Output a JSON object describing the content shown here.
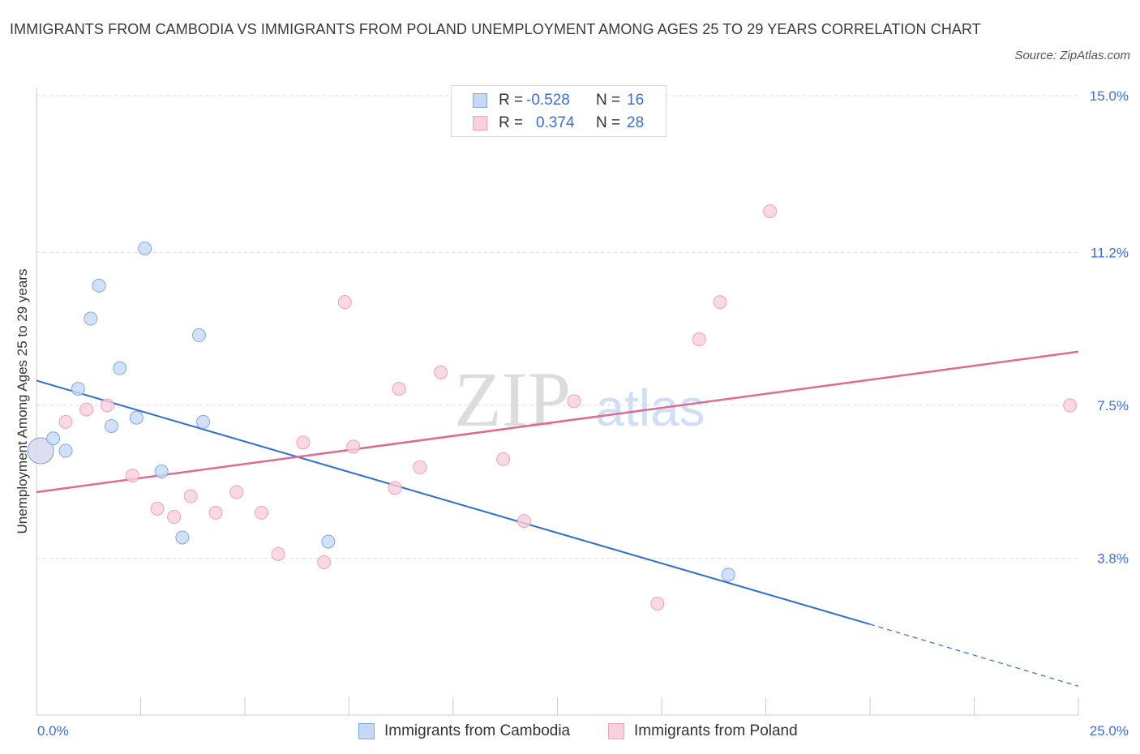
{
  "title": "IMMIGRANTS FROM CAMBODIA VS IMMIGRANTS FROM POLAND UNEMPLOYMENT AMONG AGES 25 TO 29 YEARS CORRELATION CHART",
  "source": "Source: ZipAtlas.com",
  "watermark": {
    "zip": "ZIP",
    "atlas": "atlas"
  },
  "legend": {
    "cambodia": {
      "r_label": "R =",
      "r_value": "-0.528",
      "n_label": "N =",
      "n_value": "16"
    },
    "poland": {
      "r_label": "R =",
      "r_value": "0.374",
      "n_label": "N =",
      "n_value": "28"
    }
  },
  "colors": {
    "cambodia_fill": "#c5d9f5",
    "cambodia_stroke": "#7fa8e3",
    "cambodia_line": "#2f6fd0",
    "poland_fill": "#f9d0dc",
    "poland_stroke": "#eda2b8",
    "poland_line": "#e06a94",
    "axis_value": "#3a6fd4",
    "grid": "#dedede"
  },
  "chart_data": {
    "type": "scatter",
    "title": "IMMIGRANTS FROM CAMBODIA VS IMMIGRANTS FROM POLAND UNEMPLOYMENT AMONG AGES 25 TO 29 YEARS CORRELATION CHART",
    "xlabel": "",
    "ylabel": "Unemployment Among Ages 25 to 29 years",
    "xlim": [
      0,
      25
    ],
    "ylim": [
      0,
      15
    ],
    "x_tick_labels": [
      "0.0%",
      "25.0%"
    ],
    "y_ticks": [
      3.8,
      7.5,
      11.2,
      15.0
    ],
    "y_tick_labels": [
      "3.8%",
      "7.5%",
      "11.2%",
      "15.0%"
    ],
    "grid": true,
    "series": [
      {
        "name": "Immigrants from Cambodia",
        "color": "#7fa8e3",
        "points": [
          {
            "x": 0.1,
            "y": 6.4,
            "big": true
          },
          {
            "x": 0.4,
            "y": 6.7
          },
          {
            "x": 0.7,
            "y": 6.4
          },
          {
            "x": 1.0,
            "y": 7.9
          },
          {
            "x": 1.3,
            "y": 9.6
          },
          {
            "x": 1.5,
            "y": 10.4
          },
          {
            "x": 1.8,
            "y": 7.0
          },
          {
            "x": 2.0,
            "y": 8.4
          },
          {
            "x": 2.4,
            "y": 7.2
          },
          {
            "x": 2.6,
            "y": 11.3
          },
          {
            "x": 3.0,
            "y": 5.9
          },
          {
            "x": 3.5,
            "y": 4.3
          },
          {
            "x": 3.9,
            "y": 9.2
          },
          {
            "x": 4.0,
            "y": 7.1
          },
          {
            "x": 7.0,
            "y": 4.2
          },
          {
            "x": 16.6,
            "y": 3.4
          }
        ],
        "trend": {
          "x0": 0,
          "y0": 8.1,
          "x1": 20.0,
          "y1": 2.2,
          "dashed_to_x": 25.0,
          "dashed_to_y": 0.7
        }
      },
      {
        "name": "Immigrants from Poland",
        "color": "#eda2b8",
        "points": [
          {
            "x": 0.1,
            "y": 6.4,
            "big": true
          },
          {
            "x": 0.7,
            "y": 7.1
          },
          {
            "x": 1.2,
            "y": 7.4
          },
          {
            "x": 1.7,
            "y": 7.5
          },
          {
            "x": 2.3,
            "y": 5.8
          },
          {
            "x": 2.9,
            "y": 5.0
          },
          {
            "x": 3.3,
            "y": 4.8
          },
          {
            "x": 3.7,
            "y": 5.3
          },
          {
            "x": 4.3,
            "y": 4.9
          },
          {
            "x": 4.8,
            "y": 5.4
          },
          {
            "x": 5.4,
            "y": 4.9
          },
          {
            "x": 5.8,
            "y": 3.9
          },
          {
            "x": 6.4,
            "y": 6.6
          },
          {
            "x": 6.9,
            "y": 3.7
          },
          {
            "x": 7.4,
            "y": 10.0
          },
          {
            "x": 7.6,
            "y": 6.5
          },
          {
            "x": 8.7,
            "y": 7.9
          },
          {
            "x": 8.6,
            "y": 5.5
          },
          {
            "x": 9.2,
            "y": 6.0
          },
          {
            "x": 9.7,
            "y": 8.3
          },
          {
            "x": 11.2,
            "y": 6.2
          },
          {
            "x": 11.7,
            "y": 4.7
          },
          {
            "x": 12.9,
            "y": 7.6
          },
          {
            "x": 14.9,
            "y": 2.7
          },
          {
            "x": 15.9,
            "y": 9.1
          },
          {
            "x": 16.4,
            "y": 10.0
          },
          {
            "x": 17.6,
            "y": 12.2
          },
          {
            "x": 24.8,
            "y": 7.5
          }
        ],
        "trend": {
          "x0": 0,
          "y0": 5.4,
          "x1": 25.0,
          "y1": 8.8
        }
      }
    ]
  }
}
